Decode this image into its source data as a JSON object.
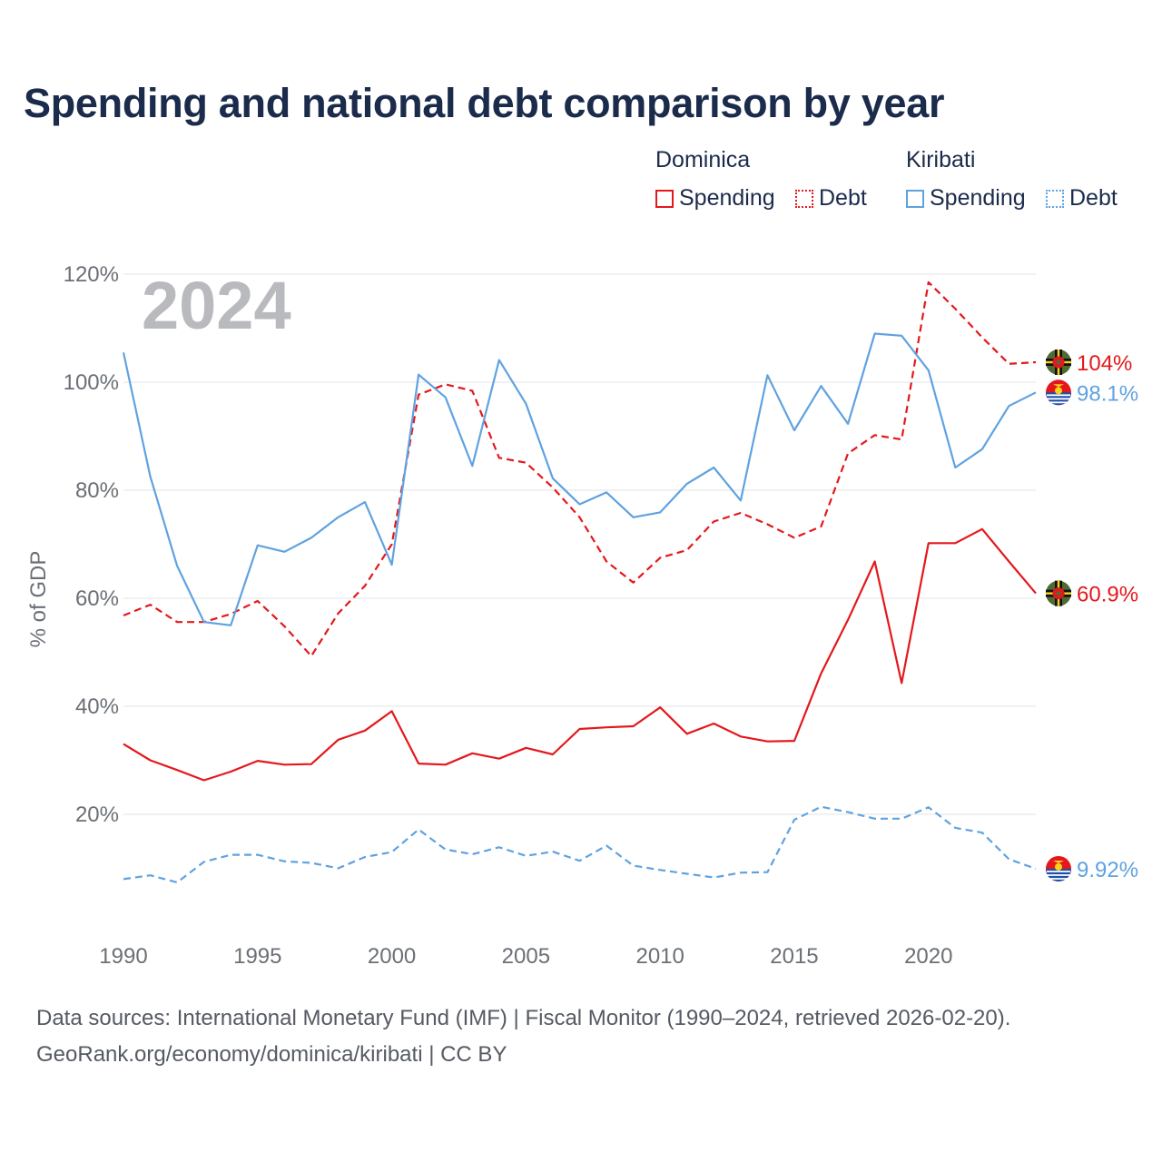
{
  "title": "Spending and national debt comparison by year",
  "legend": {
    "groups": [
      {
        "country": "Dominica",
        "color": "#e4181c",
        "items": [
          {
            "label": "Spending",
            "style": "solid"
          },
          {
            "label": "Debt",
            "style": "dotted"
          }
        ]
      },
      {
        "country": "Kiribati",
        "color": "#5fa2e0",
        "items": [
          {
            "label": "Spending",
            "style": "solid"
          },
          {
            "label": "Debt",
            "style": "dotted"
          }
        ]
      }
    ]
  },
  "year_label": "2024",
  "footer": {
    "line1": "Data sources: International Monetary Fund (IMF) | Fiscal Monitor (1990–2024, retrieved 2026-02-20).",
    "line2": "GeoRank.org/economy/dominica/kiribati | CC BY"
  },
  "chart_data": {
    "type": "line",
    "ylabel": "% of GDP",
    "xlabel": "",
    "xlim": [
      1990,
      2024
    ],
    "ylim": [
      0,
      120
    ],
    "xticks": [
      1990,
      1995,
      2000,
      2005,
      2010,
      2015,
      2020
    ],
    "yticks": [
      20,
      40,
      60,
      80,
      100,
      120
    ],
    "ytick_labels": [
      "20%",
      "40%",
      "60%",
      "80%",
      "100%",
      "120%"
    ],
    "grid": true,
    "x": [
      1990,
      1991,
      1992,
      1993,
      1994,
      1995,
      1996,
      1997,
      1998,
      1999,
      2000,
      2001,
      2002,
      2003,
      2004,
      2005,
      2006,
      2007,
      2008,
      2009,
      2010,
      2011,
      2012,
      2013,
      2014,
      2015,
      2016,
      2017,
      2018,
      2019,
      2020,
      2021,
      2022,
      2023,
      2024
    ],
    "series": [
      {
        "name": "Dominica Spending",
        "country": "Dominica",
        "metric": "Spending",
        "color": "#e4181c",
        "dash": "solid",
        "end_label": "60.9%",
        "values": [
          33.0,
          30.0,
          28.2,
          26.3,
          27.9,
          29.9,
          29.2,
          29.3,
          33.8,
          35.5,
          39.1,
          29.4,
          29.2,
          31.3,
          30.3,
          32.3,
          31.1,
          35.8,
          36.1,
          36.3,
          39.8,
          34.9,
          36.8,
          34.4,
          33.5,
          33.6,
          46.1,
          56.0,
          66.8,
          44.3,
          70.2,
          70.2,
          72.8,
          66.8,
          60.9
        ]
      },
      {
        "name": "Dominica Debt",
        "country": "Dominica",
        "metric": "Debt",
        "color": "#e4181c",
        "dash": "dashed",
        "end_label": "104%",
        "values": [
          56.8,
          58.8,
          55.6,
          55.6,
          57.1,
          59.5,
          54.8,
          49.3,
          57.2,
          62.3,
          70.0,
          97.7,
          99.6,
          98.4,
          86.0,
          85.1,
          80.5,
          75.0,
          66.8,
          62.9,
          67.5,
          68.9,
          74.2,
          75.8,
          73.7,
          71.2,
          73.3,
          86.8,
          90.2,
          89.4,
          118.5,
          113.6,
          108.3,
          103.4,
          103.7
        ]
      },
      {
        "name": "Kiribati Spending",
        "country": "Kiribati",
        "metric": "Spending",
        "color": "#5fa2e0",
        "dash": "solid",
        "end_label": "98.1%",
        "values": [
          105.5,
          82.5,
          66.0,
          55.6,
          55.0,
          69.8,
          68.6,
          71.2,
          75.0,
          77.8,
          66.2,
          101.4,
          97.2,
          84.5,
          104.1,
          96.0,
          82.2,
          77.4,
          79.6,
          75.0,
          75.9,
          81.2,
          84.2,
          78.1,
          101.3,
          91.1,
          99.3,
          92.3,
          109.0,
          108.6,
          102.2,
          84.2,
          87.6,
          95.6,
          98.1
        ]
      },
      {
        "name": "Kiribati Debt",
        "country": "Kiribati",
        "metric": "Debt",
        "color": "#5fa2e0",
        "dash": "dashed",
        "end_label": "9.92%",
        "values": [
          8.0,
          8.7,
          7.4,
          11.2,
          12.5,
          12.5,
          11.3,
          11.0,
          10.0,
          12.1,
          13.0,
          17.2,
          13.5,
          12.6,
          13.9,
          12.3,
          13.1,
          11.4,
          14.2,
          10.5,
          9.7,
          9.0,
          8.3,
          9.2,
          9.3,
          19.0,
          21.4,
          20.4,
          19.2,
          19.2,
          21.3,
          17.5,
          16.6,
          11.7,
          9.92
        ]
      }
    ]
  }
}
